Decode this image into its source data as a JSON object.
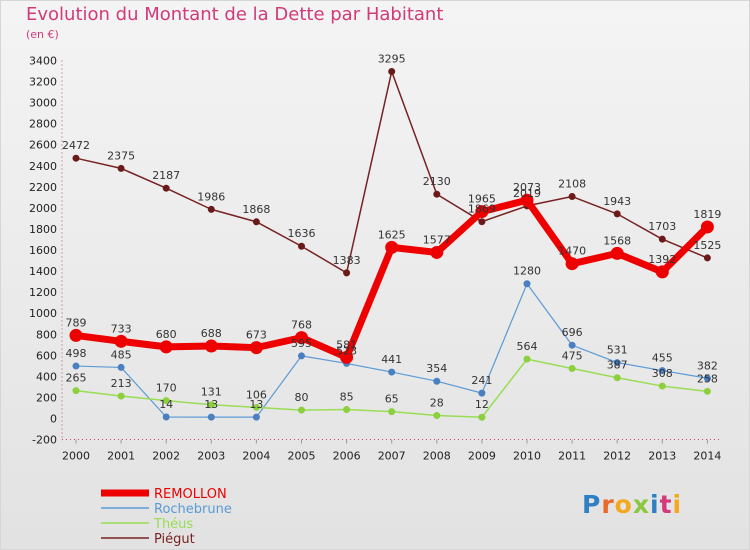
{
  "title": "Evolution du Montant de la Dette par Habitant",
  "unit": "(en €)",
  "logo": "Proxiti",
  "colors": {
    "title": "#d23a7a",
    "REMOLLON": "#ee0000",
    "Rochebrune": "#5b9bd5",
    "Théus": "#99dd55",
    "Piégut": "#772222"
  },
  "chart_data": {
    "type": "line",
    "title": "Evolution du Montant de la Dette par Habitant",
    "ylabel": "(en €)",
    "ylim": [
      -200,
      3400
    ],
    "yticks": [
      -200,
      0,
      200,
      400,
      600,
      800,
      1000,
      1200,
      1400,
      1600,
      1800,
      2000,
      2200,
      2400,
      2600,
      2800,
      3000,
      3200,
      3400
    ],
    "grid": false,
    "legend": "bottom-left",
    "x": [
      "2000",
      "2001",
      "2002",
      "2003",
      "2004",
      "2005",
      "2006",
      "2007",
      "2008",
      "2009",
      "2010",
      "2011",
      "2012",
      "2013",
      "2014"
    ],
    "series": [
      {
        "name": "Piégut",
        "values": [
          2472,
          2375,
          2187,
          1986,
          1868,
          1636,
          1383,
          3295,
          2130,
          1869,
          2019,
          2108,
          1943,
          1703,
          1525
        ]
      },
      {
        "name": "Rochebrune",
        "values": [
          498,
          485,
          14,
          13,
          13,
          595,
          523,
          441,
          354,
          241,
          1280,
          696,
          531,
          455,
          382
        ]
      },
      {
        "name": "Théus",
        "values": [
          265,
          213,
          170,
          131,
          106,
          80,
          85,
          65,
          28,
          12,
          564,
          475,
          387,
          308,
          258
        ]
      },
      {
        "name": "REMOLLON",
        "values": [
          789,
          733,
          680,
          688,
          673,
          768,
          581,
          1625,
          1577,
          1965,
          2073,
          1470,
          1568,
          1392,
          1819
        ]
      }
    ]
  }
}
